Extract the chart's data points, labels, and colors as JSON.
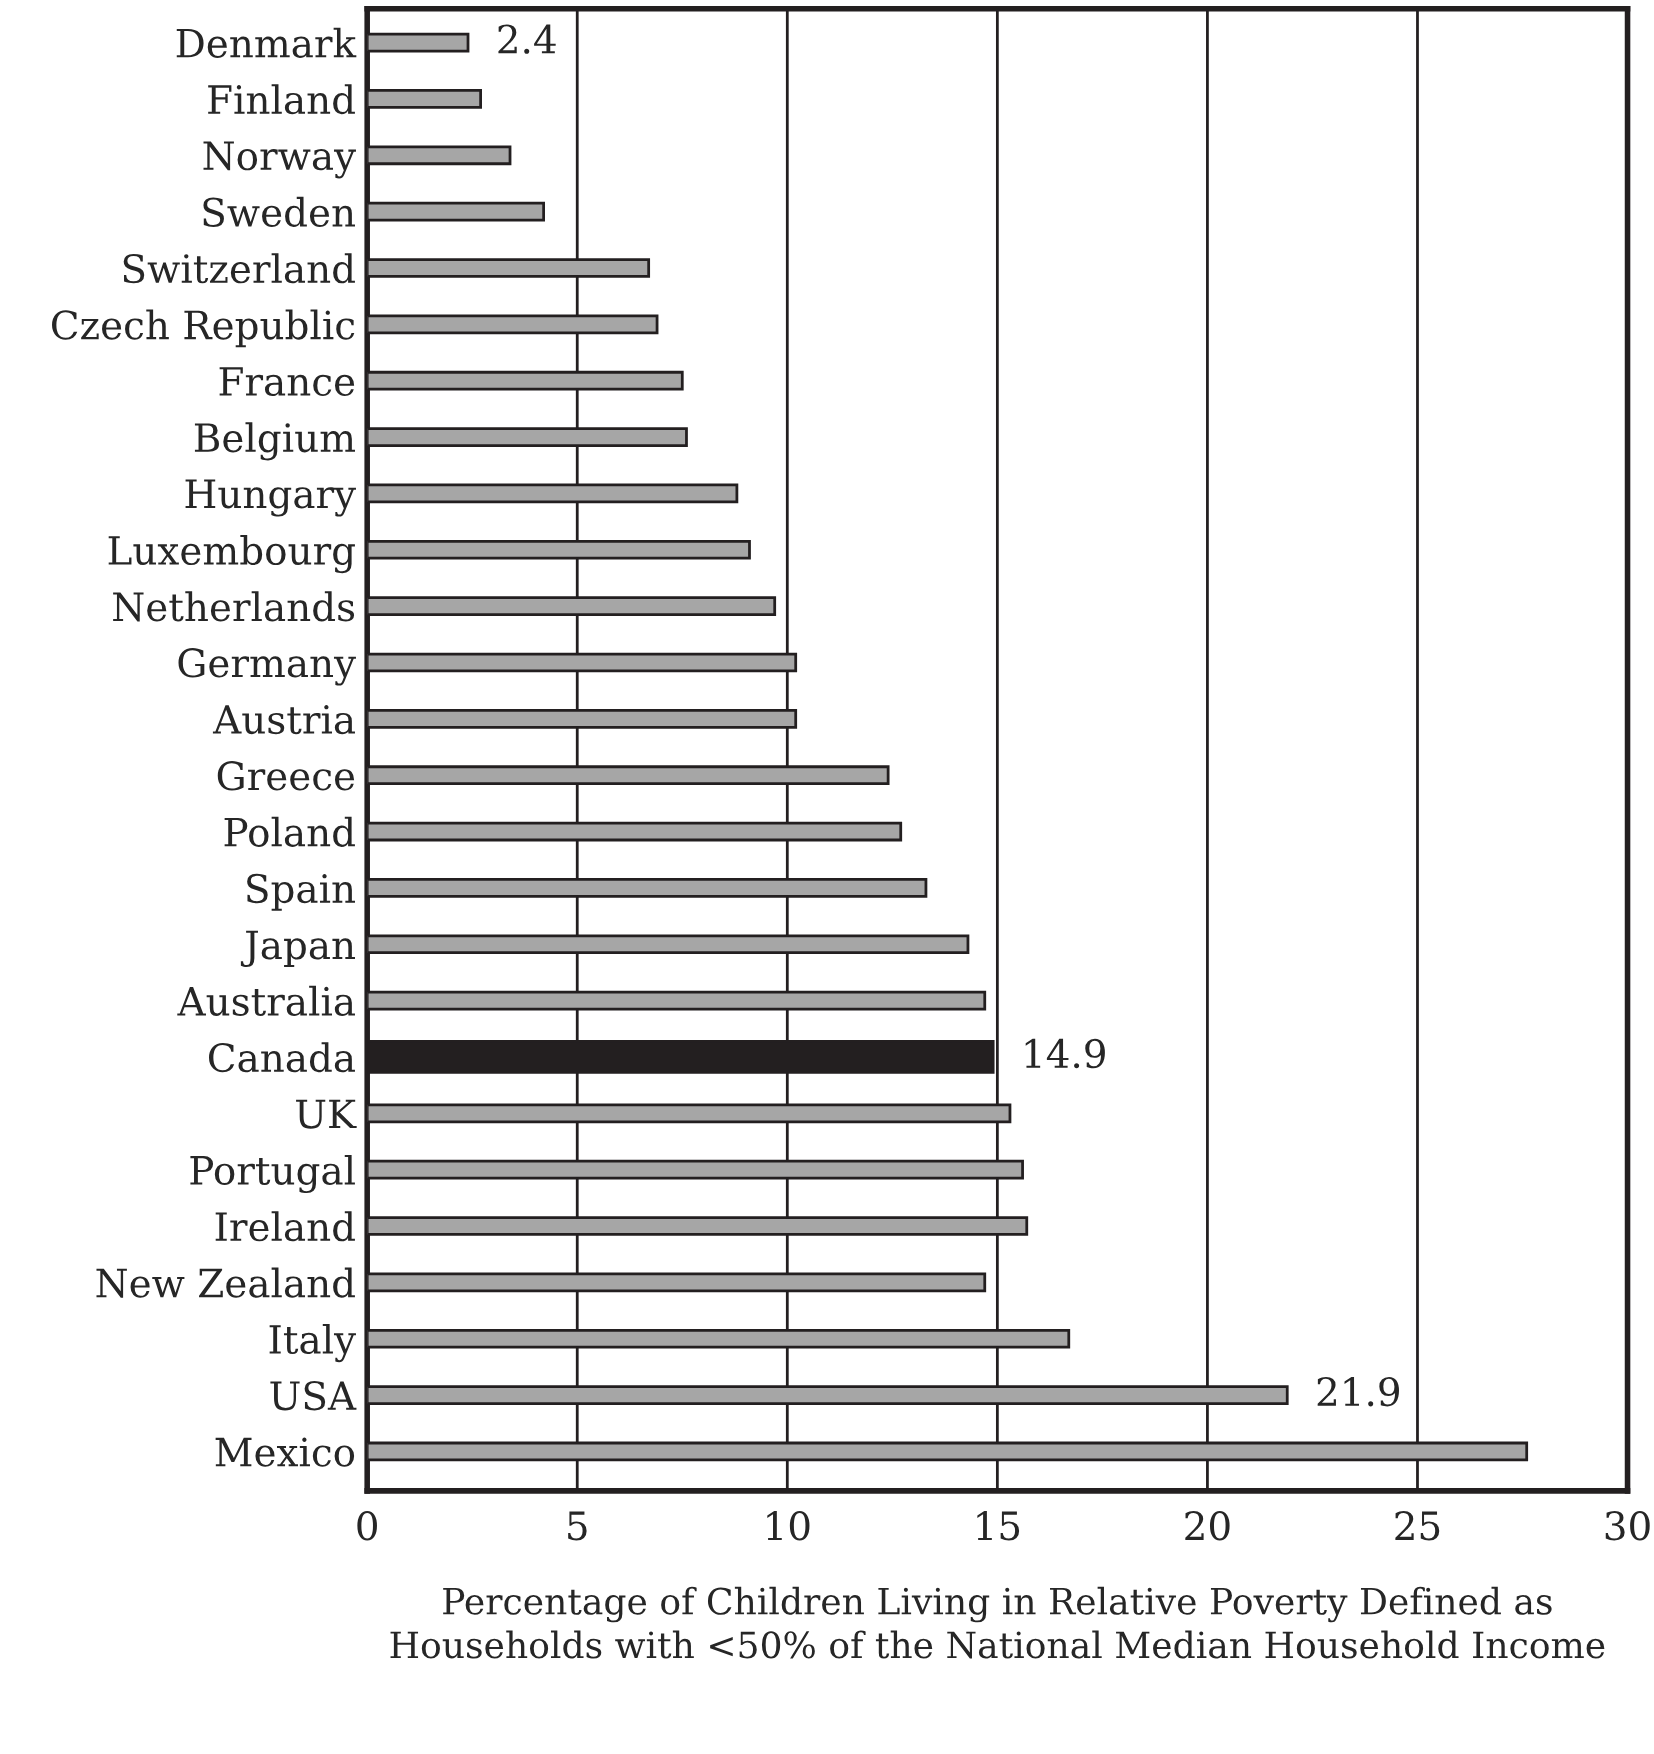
{
  "chart_data": {
    "type": "bar",
    "orientation": "horizontal",
    "xlabel": "Percentage of Children Living in Relative Poverty Defined as Households with <50% of the National Median Household Income",
    "categories": [
      "Denmark",
      "Finland",
      "Norway",
      "Sweden",
      "Switzerland",
      "Czech Republic",
      "France",
      "Belgium",
      "Hungary",
      "Luxembourg",
      "Netherlands",
      "Germany",
      "Austria",
      "Greece",
      "Poland",
      "Spain",
      "Japan",
      "Australia",
      "Canada",
      "UK",
      "Portugal",
      "Ireland",
      "New Zealand",
      "Italy",
      "USA",
      "Mexico"
    ],
    "values": [
      2.4,
      2.7,
      3.4,
      4.2,
      6.7,
      6.9,
      7.5,
      7.6,
      8.8,
      9.1,
      9.7,
      10.2,
      10.2,
      12.4,
      12.7,
      13.3,
      14.3,
      14.7,
      14.9,
      15.3,
      15.6,
      15.7,
      14.7,
      16.7,
      21.9,
      27.6
    ],
    "colors": [
      "#a6a6a6",
      "#a6a6a6",
      "#a6a6a6",
      "#a6a6a6",
      "#a6a6a6",
      "#a6a6a6",
      "#a6a6a6",
      "#a6a6a6",
      "#a6a6a6",
      "#a6a6a6",
      "#a6a6a6",
      "#a6a6a6",
      "#a6a6a6",
      "#a6a6a6",
      "#a6a6a6",
      "#a6a6a6",
      "#a6a6a6",
      "#a6a6a6",
      "#231f20",
      "#a6a6a6",
      "#a6a6a6",
      "#a6a6a6",
      "#a6a6a6",
      "#a6a6a6",
      "#a6a6a6",
      "#a6a6a6"
    ],
    "value_labels": [
      "2.4",
      null,
      null,
      null,
      null,
      null,
      null,
      null,
      null,
      null,
      null,
      null,
      null,
      null,
      null,
      null,
      null,
      null,
      "14.9",
      null,
      null,
      null,
      null,
      null,
      "21.9",
      null
    ],
    "xlim": [
      0,
      30
    ],
    "xticks": [
      0,
      5,
      10,
      15,
      20,
      25,
      30
    ],
    "grid": "x"
  }
}
